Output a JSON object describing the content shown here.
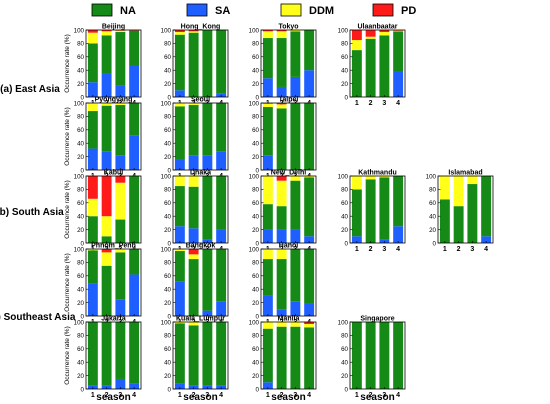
{
  "legend": [
    {
      "name": "NA",
      "color": "#168a16"
    },
    {
      "name": "SA",
      "color": "#1f5fff"
    },
    {
      "name": "DDM",
      "color": "#ffff1a"
    },
    {
      "name": "PD",
      "color": "#ff1a1a"
    }
  ],
  "regions": [
    "(a) East Asia",
    "(b) South Asia",
    "(c) Southeast Asia"
  ],
  "ylabel": "Occurrence rate (%)",
  "xlabel": "season",
  "chart_data": {
    "type": "bar",
    "stacked": true,
    "categories": [
      "1",
      "2",
      "3",
      "4"
    ],
    "series_order": [
      "SA",
      "NA",
      "DDM",
      "PD"
    ],
    "ylim": [
      0,
      100
    ],
    "yticks": [
      0,
      20,
      40,
      60,
      80,
      100
    ],
    "panels": [
      {
        "city": "Beijing",
        "region": 0,
        "row": 0,
        "col": 0,
        "SA": [
          22,
          35,
          17,
          47
        ],
        "NA": [
          58,
          57,
          80,
          52
        ],
        "DDM": [
          16,
          6,
          2,
          0
        ],
        "PD": [
          4,
          2,
          1,
          1
        ]
      },
      {
        "city": "Hong_Kong",
        "region": 0,
        "row": 0,
        "col": 1,
        "SA": [
          10,
          0,
          0,
          5
        ],
        "NA": [
          83,
          96,
          100,
          95
        ],
        "DDM": [
          4,
          2,
          0,
          0
        ],
        "PD": [
          3,
          2,
          0,
          0
        ]
      },
      {
        "city": "Tokyo",
        "region": 0,
        "row": 0,
        "col": 2,
        "SA": [
          28,
          15,
          30,
          40
        ],
        "NA": [
          60,
          73,
          68,
          60
        ],
        "DDM": [
          10,
          10,
          2,
          0
        ],
        "PD": [
          2,
          2,
          0,
          0
        ]
      },
      {
        "city": "Ulaanbaatar",
        "region": 0,
        "row": 0,
        "col": 3,
        "SA": [
          0,
          0,
          0,
          38
        ],
        "NA": [
          70,
          87,
          92,
          60
        ],
        "DDM": [
          15,
          3,
          5,
          1
        ],
        "PD": [
          15,
          10,
          3,
          1
        ]
      },
      {
        "city": "Pyongyang",
        "region": 0,
        "row": 1,
        "col": 0,
        "SA": [
          32,
          28,
          22,
          52
        ],
        "NA": [
          56,
          68,
          75,
          48
        ],
        "DDM": [
          12,
          4,
          3,
          0
        ],
        "PD": [
          0,
          0,
          0,
          0
        ]
      },
      {
        "city": "Seoul",
        "region": 0,
        "row": 1,
        "col": 1,
        "SA": [
          15,
          22,
          22,
          28
        ],
        "NA": [
          80,
          75,
          78,
          72
        ],
        "DDM": [
          5,
          3,
          0,
          0
        ],
        "PD": [
          0,
          0,
          0,
          0
        ]
      },
      {
        "city": "Taipei",
        "region": 0,
        "row": 1,
        "col": 2,
        "SA": [
          22,
          0,
          0,
          0
        ],
        "NA": [
          72,
          92,
          100,
          100
        ],
        "DDM": [
          5,
          6,
          0,
          0
        ],
        "PD": [
          1,
          2,
          0,
          0
        ]
      },
      {
        "city": "Kabul",
        "region": 1,
        "row": 2,
        "col": 0,
        "SA": [
          0,
          0,
          0,
          0
        ],
        "NA": [
          40,
          10,
          35,
          100
        ],
        "DDM": [
          26,
          30,
          55,
          0
        ],
        "PD": [
          34,
          60,
          10,
          0
        ]
      },
      {
        "city": "Dhaka",
        "region": 1,
        "row": 2,
        "col": 1,
        "SA": [
          25,
          22,
          5,
          20
        ],
        "NA": [
          60,
          62,
          95,
          80
        ],
        "DDM": [
          15,
          16,
          0,
          0
        ],
        "PD": [
          0,
          0,
          0,
          0
        ]
      },
      {
        "city": "New_Delhi",
        "region": 1,
        "row": 2,
        "col": 2,
        "SA": [
          20,
          20,
          20,
          10
        ],
        "NA": [
          38,
          35,
          73,
          88
        ],
        "DDM": [
          42,
          38,
          7,
          2
        ],
        "PD": [
          0,
          7,
          0,
          0
        ]
      },
      {
        "city": "Kathmandu",
        "region": 1,
        "row": 2,
        "col": 3,
        "SA": [
          10,
          0,
          5,
          25
        ],
        "NA": [
          70,
          95,
          93,
          75
        ],
        "DDM": [
          20,
          5,
          2,
          0
        ],
        "PD": [
          0,
          0,
          0,
          0
        ]
      },
      {
        "city": "Islamabad",
        "region": 1,
        "row": 2,
        "col": 4,
        "SA": [
          0,
          0,
          0,
          10
        ],
        "NA": [
          65,
          55,
          88,
          90
        ],
        "DDM": [
          35,
          45,
          12,
          0
        ],
        "PD": [
          0,
          0,
          0,
          0
        ]
      },
      {
        "city": "Phnom_Penh",
        "region": 2,
        "row": 3,
        "col": 0,
        "SA": [
          48,
          0,
          25,
          62
        ],
        "NA": [
          50,
          75,
          70,
          38
        ],
        "DDM": [
          2,
          20,
          5,
          0
        ],
        "PD": [
          0,
          5,
          0,
          0
        ]
      },
      {
        "city": "Bangkok",
        "region": 2,
        "row": 3,
        "col": 1,
        "SA": [
          52,
          0,
          8,
          22
        ],
        "NA": [
          45,
          85,
          92,
          78
        ],
        "DDM": [
          3,
          7,
          0,
          0
        ],
        "PD": [
          0,
          8,
          0,
          0
        ]
      },
      {
        "city": "Hanoi",
        "region": 2,
        "row": 3,
        "col": 2,
        "SA": [
          30,
          10,
          22,
          18
        ],
        "NA": [
          55,
          75,
          78,
          82
        ],
        "DDM": [
          15,
          15,
          0,
          0
        ],
        "PD": [
          0,
          0,
          0,
          0
        ]
      },
      {
        "city": "Jakarta",
        "region": 2,
        "row": 4,
        "col": 0,
        "SA": [
          5,
          5,
          15,
          8
        ],
        "NA": [
          95,
          95,
          85,
          92
        ],
        "DDM": [
          0,
          0,
          0,
          0
        ],
        "PD": [
          0,
          0,
          0,
          0
        ]
      },
      {
        "city": "Kuala_Lumpur",
        "region": 2,
        "row": 4,
        "col": 1,
        "SA": [
          8,
          5,
          5,
          5
        ],
        "NA": [
          90,
          90,
          95,
          95
        ],
        "DDM": [
          2,
          5,
          0,
          0
        ],
        "PD": [
          0,
          0,
          0,
          0
        ]
      },
      {
        "city": "Manila",
        "region": 2,
        "row": 4,
        "col": 2,
        "SA": [
          10,
          0,
          0,
          0
        ],
        "NA": [
          80,
          93,
          93,
          92
        ],
        "DDM": [
          10,
          7,
          7,
          5
        ],
        "PD": [
          0,
          0,
          0,
          3
        ]
      },
      {
        "city": "Singapore",
        "region": 2,
        "row": 4,
        "col": 3,
        "SA": [
          0,
          0,
          0,
          0
        ],
        "NA": [
          100,
          100,
          100,
          100
        ],
        "DDM": [
          0,
          0,
          0,
          0
        ],
        "PD": [
          0,
          0,
          0,
          0
        ]
      }
    ]
  }
}
